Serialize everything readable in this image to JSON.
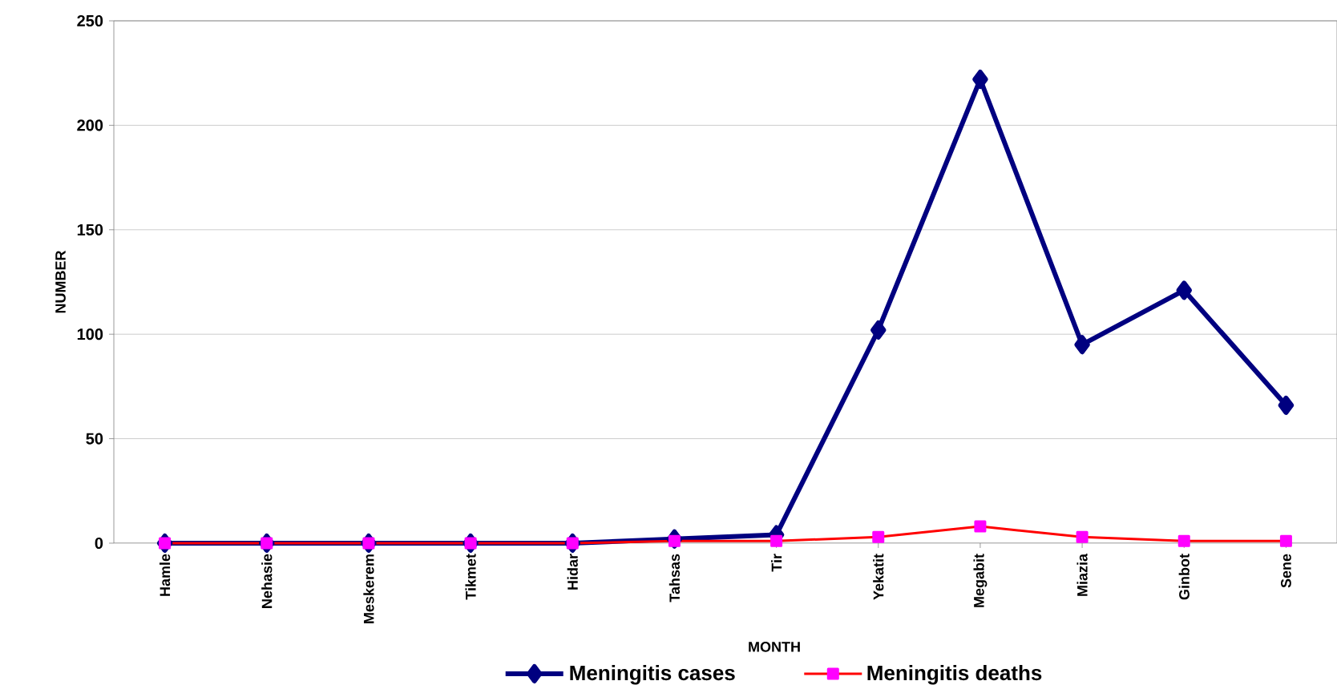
{
  "chart_data": {
    "type": "line",
    "xlabel": "MONTH",
    "ylabel": "NUMBER",
    "categories": [
      "Hamle",
      "Nehasie",
      "Meskerem",
      "Tikmet",
      "Hidar",
      "Tahsas",
      "Tir",
      "Yekatit",
      "Megabit",
      "Miazia",
      "Ginbot",
      "Sene"
    ],
    "series": [
      {
        "name": "Meningitis cases",
        "color": "#000080",
        "marker": "diamond",
        "values": [
          0,
          0,
          0,
          0,
          0,
          2,
          4,
          102,
          222,
          95,
          121,
          66
        ]
      },
      {
        "name": "Meningitis deaths",
        "color": "#ff0000",
        "marker": "square",
        "values": [
          0,
          0,
          0,
          0,
          0,
          1,
          1,
          3,
          8,
          3,
          1,
          1
        ]
      }
    ],
    "ylim": [
      0,
      250
    ],
    "yticks": [
      0,
      50,
      100,
      150,
      200,
      250
    ],
    "grid": "y",
    "legend": "bottom"
  }
}
